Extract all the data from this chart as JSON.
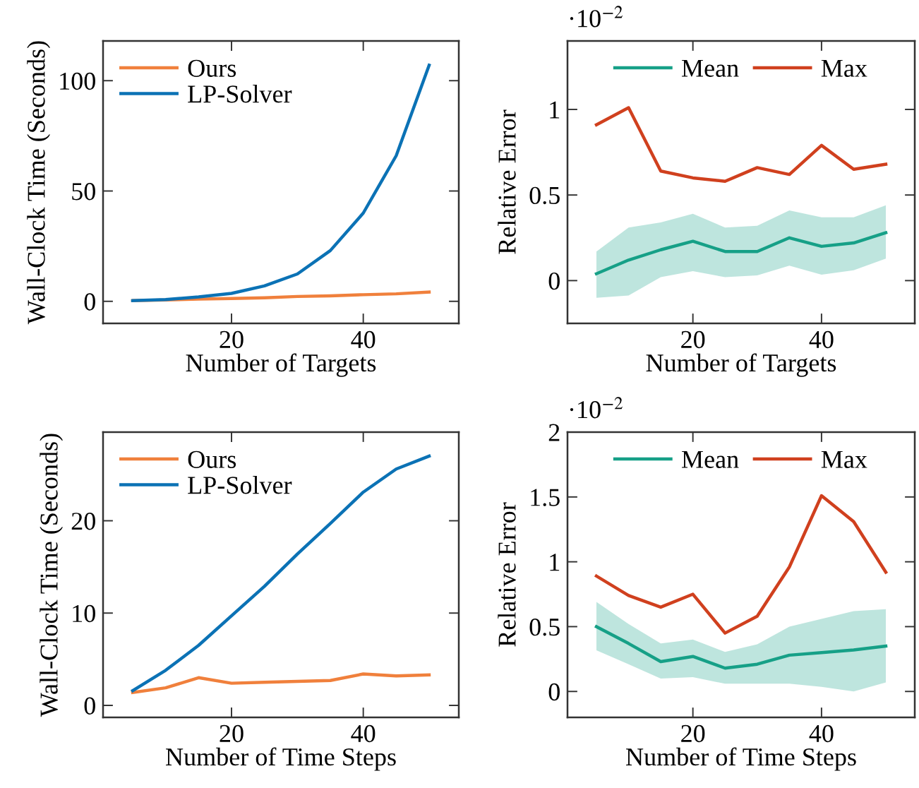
{
  "chart_data": [
    {
      "type": "line",
      "xlabel": "Number of Targets",
      "ylabel": "Wall-Clock Time (Seconds)",
      "x": [
        5,
        10,
        15,
        20,
        25,
        30,
        35,
        40,
        45,
        50
      ],
      "xlim": [
        0.5,
        54.5
      ],
      "xticks": [
        20,
        40
      ],
      "ylim": [
        -10,
        118
      ],
      "yticks": [
        0,
        50,
        100
      ],
      "legend": "top left",
      "grid": false,
      "marker": "none",
      "line_style": "solid",
      "series": [
        {
          "name": "Ours",
          "color": "#f0803c",
          "values": [
            0.3,
            0.6,
            1,
            1.3,
            1.6,
            2.2,
            2.5,
            3,
            3.4,
            4.2
          ]
        },
        {
          "name": "LP-Solver",
          "color": "#0b72b5",
          "values": [
            0.3,
            0.8,
            2,
            3.6,
            7,
            12.4,
            23,
            40,
            66,
            107
          ]
        }
      ]
    },
    {
      "type": "line",
      "xlabel": "Number of Targets",
      "ylabel": "Relative Error",
      "annotations": [
        "·10$^{−2}$"
      ],
      "x": [
        5,
        10,
        15,
        20,
        25,
        30,
        35,
        40,
        45,
        50
      ],
      "xlim": [
        0.5,
        54.5
      ],
      "xticks": [
        20,
        40
      ],
      "ylim": [
        -0.25,
        1.4
      ],
      "yticks": [
        0,
        0.5,
        1
      ],
      "legend": "top",
      "grid": false,
      "marker": "none",
      "line_style": "solid",
      "series": [
        {
          "name": "Mean",
          "color": "#16a087",
          "values": [
            0.04,
            0.12,
            0.18,
            0.23,
            0.17,
            0.17,
            0.25,
            0.2,
            0.22,
            0.28
          ],
          "lower": [
            -0.1,
            -0.087,
            0.02,
            0.055,
            0.02,
            0.03,
            0.087,
            0.035,
            0.06,
            0.128
          ],
          "upper": [
            0.17,
            0.31,
            0.34,
            0.39,
            0.31,
            0.32,
            0.41,
            0.37,
            0.37,
            0.44
          ]
        },
        {
          "name": "Max",
          "color": "#d0401e",
          "values": [
            0.91,
            1.01,
            0.64,
            0.6,
            0.58,
            0.66,
            0.62,
            0.79,
            0.65,
            0.68
          ]
        }
      ]
    },
    {
      "type": "line",
      "xlabel": "Number of Time Steps",
      "ylabel": "Wall-Clock Time (Seconds)",
      "x": [
        5,
        10,
        15,
        20,
        25,
        30,
        35,
        40,
        45,
        50
      ],
      "xlim": [
        0.5,
        54.5
      ],
      "xticks": [
        20,
        40
      ],
      "ylim": [
        -1.3,
        29.6
      ],
      "yticks": [
        0,
        10,
        20
      ],
      "legend": "top left",
      "grid": false,
      "marker": "none",
      "line_style": "solid",
      "series": [
        {
          "name": "Ours",
          "color": "#f0803c",
          "values": [
            1.4,
            1.9,
            3.0,
            2.4,
            2.5,
            2.6,
            2.7,
            3.4,
            3.2,
            3.3
          ]
        },
        {
          "name": "LP-Solver",
          "color": "#0b72b5",
          "values": [
            1.6,
            3.8,
            6.5,
            9.7,
            12.9,
            16.4,
            19.7,
            23.1,
            25.6,
            27.0
          ]
        }
      ]
    },
    {
      "type": "line",
      "xlabel": "Number of Time Steps",
      "ylabel": "Relative Error",
      "annotations": [
        "·10$^{−2}$"
      ],
      "x": [
        5,
        10,
        15,
        20,
        25,
        30,
        35,
        40,
        45,
        50
      ],
      "xlim": [
        0.5,
        54.5
      ],
      "xticks": [
        20,
        40
      ],
      "ylim": [
        -0.2,
        2
      ],
      "yticks": [
        0,
        0.5,
        1,
        1.5,
        2
      ],
      "legend": "top",
      "grid": false,
      "marker": "none",
      "line_style": "solid",
      "series": [
        {
          "name": "Mean",
          "color": "#16a087",
          "values": [
            0.5,
            0.37,
            0.23,
            0.27,
            0.18,
            0.21,
            0.28,
            0.3,
            0.32,
            0.35
          ],
          "lower": [
            0.317,
            0.21,
            0.1,
            0.11,
            0.06,
            0.06,
            0.06,
            0.035,
            0.0,
            0.07
          ],
          "upper": [
            0.69,
            0.52,
            0.37,
            0.4,
            0.305,
            0.364,
            0.5,
            0.56,
            0.62,
            0.635
          ]
        },
        {
          "name": "Max",
          "color": "#d0401e",
          "values": [
            0.89,
            0.74,
            0.65,
            0.75,
            0.45,
            0.58,
            0.96,
            1.51,
            1.31,
            0.92
          ]
        }
      ]
    }
  ]
}
